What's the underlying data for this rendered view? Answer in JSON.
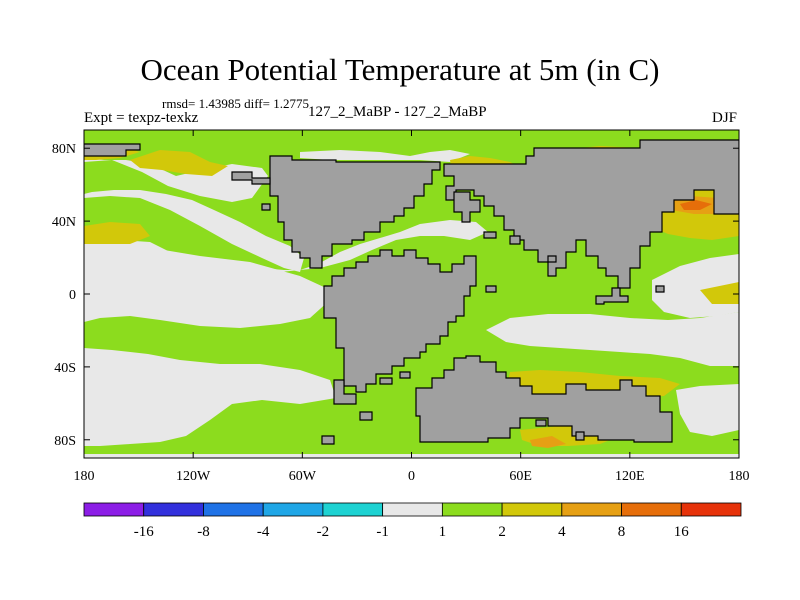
{
  "title": "Ocean Potential Temperature at 5m (in C)",
  "stats_text": "rmsd= 1.43985 diff= 1.2775",
  "expt_label": "Expt = texpz-texkz",
  "runs_label": "127_2_MaBP - 127_2_MaBP",
  "season": "DJF",
  "axes": {
    "x_ticks": [
      {
        "lon": -180,
        "label": "180"
      },
      {
        "lon": -120,
        "label": "120W"
      },
      {
        "lon": -60,
        "label": "60W"
      },
      {
        "lon": 0,
        "label": "0"
      },
      {
        "lon": 60,
        "label": "60E"
      },
      {
        "lon": 120,
        "label": "120E"
      },
      {
        "lon": 180,
        "label": "180"
      }
    ],
    "y_ticks": [
      {
        "lat": 80,
        "label": "80N"
      },
      {
        "lat": 40,
        "label": "40N"
      },
      {
        "lat": 0,
        "label": "0"
      },
      {
        "lat": -40,
        "label": "40S"
      },
      {
        "lat": -80,
        "label": "80S"
      }
    ],
    "lon_range": [
      -180,
      180
    ],
    "lat_range": [
      -90,
      90
    ]
  },
  "colorbar": {
    "colors": [
      "#8c1ee6",
      "#3230dc",
      "#1f72e6",
      "#1fa6e6",
      "#1ed2d2",
      "#e8e8e8",
      "#8cdc1e",
      "#d2c80a",
      "#e6a014",
      "#e66e0a",
      "#e6320a"
    ],
    "labels": [
      "-16",
      "-8",
      "-4",
      "-2",
      "-1",
      "1",
      "2",
      "4",
      "8",
      "16"
    ]
  },
  "colors": {
    "land": "#a0a0a0",
    "land_outline": "#000000",
    "ocean_bg": "#8cdc1e",
    "neutral": "#e8e8e8",
    "band_2_4": "#d2c80a",
    "band_4_8": "#e6a014",
    "band_8_16": "#e66e0a"
  }
}
